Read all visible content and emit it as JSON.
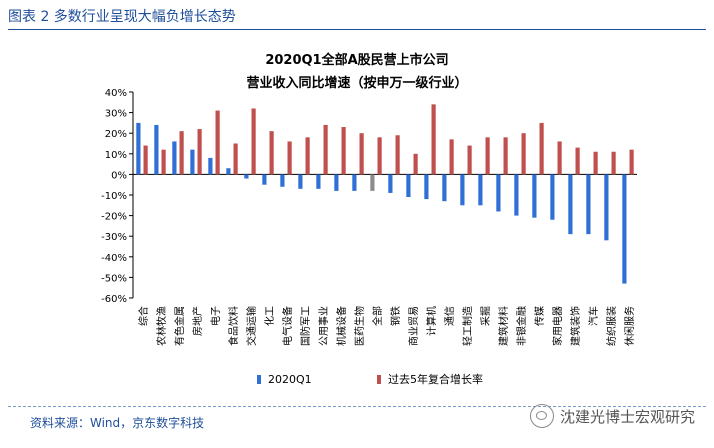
{
  "figure": {
    "label": "图表 2 多数行业呈现大幅负增长态势",
    "source": "资料来源：Wind，京东数字科技",
    "watermark": "沈建光博士宏观研究"
  },
  "colors": {
    "series1": "#2f6fd6",
    "series2": "#c0504d",
    "highlight": "#8c8c8c",
    "axis": "#000000"
  },
  "chart_data": {
    "type": "bar",
    "title": "2020Q1全部A股民营上市公司",
    "subtitle": "营业收入同比增速（按申万一级行业）",
    "ylim": [
      -60,
      40
    ],
    "yticks": [
      "40%",
      "30%",
      "20%",
      "10%",
      "0%",
      "-10%",
      "-20%",
      "-30%",
      "-40%",
      "-50%",
      "-60%"
    ],
    "ytick_values": [
      40,
      30,
      20,
      10,
      0,
      -10,
      -20,
      -30,
      -40,
      -50,
      -60
    ],
    "highlight_category": "全部",
    "categories": [
      "综合",
      "农林牧渔",
      "有色金属",
      "房地产",
      "电子",
      "食品饮料",
      "交通运输",
      "化工",
      "电气设备",
      "国防军工",
      "公用事业",
      "机械设备",
      "医药生物",
      "全部",
      "钢铁",
      "商业贸易",
      "计算机",
      "通信",
      "轻工制造",
      "采掘",
      "建筑材料",
      "非银金融",
      "传媒",
      "家用电器",
      "建筑装饰",
      "汽车",
      "纺织服装",
      "休闲服务"
    ],
    "series": [
      {
        "name": "2020Q1",
        "values": [
          25,
          24,
          16,
          12,
          8,
          3,
          -2,
          -5,
          -6,
          -7,
          -7,
          -8,
          -8,
          -8,
          -9,
          -11,
          -12,
          -13,
          -15,
          -15,
          -18,
          -20,
          -21,
          -22,
          -29,
          -29,
          -32,
          -53
        ]
      },
      {
        "name": "过去5年复合增长率",
        "values": [
          14,
          12,
          21,
          22,
          31,
          15,
          32,
          21,
          16,
          18,
          24,
          23,
          20,
          18,
          19,
          10,
          34,
          17,
          14,
          18,
          18,
          20,
          25,
          16,
          13,
          11,
          11,
          12
        ]
      }
    ],
    "legend": [
      "2020Q1",
      "过去5年复合增长率"
    ]
  }
}
